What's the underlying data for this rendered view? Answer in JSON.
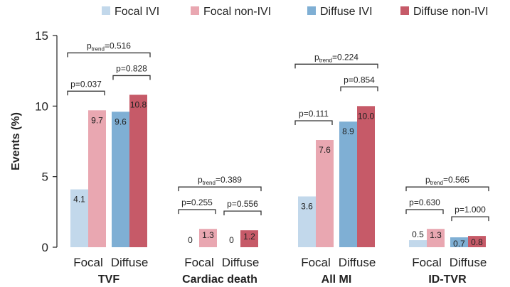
{
  "chart_data": {
    "type": "bar",
    "ylabel": "Events (%)",
    "ylim": [
      0,
      15
    ],
    "yticks": [
      "0",
      "5",
      "10",
      "15"
    ],
    "grid": false,
    "legend_position": "top",
    "series": [
      {
        "name": "Focal IVI",
        "color": "#c2d8eb"
      },
      {
        "name": "Focal non-IVI",
        "color": "#e9a7b1"
      },
      {
        "name": "Diffuse IVI",
        "color": "#7fafd4"
      },
      {
        "name": "Diffuse non-IVI",
        "color": "#c65a68"
      }
    ],
    "groups": [
      {
        "name": "TVF",
        "sub": [
          "Focal",
          "Diffuse"
        ],
        "values": [
          4.1,
          9.7,
          9.6,
          10.8
        ],
        "labels": [
          "4.1",
          "9.7",
          "9.6",
          "10.8"
        ],
        "p_focal": "p=0.037",
        "p_diffuse": "p=0.828",
        "p_trend": "0.516"
      },
      {
        "name": "Cardiac death",
        "sub": [
          "Focal",
          "Diffuse"
        ],
        "values": [
          0,
          1.3,
          0,
          1.2
        ],
        "labels": [
          "0",
          "1.3",
          "0",
          "1.2"
        ],
        "p_focal": "p=0.255",
        "p_diffuse": "p=0.556",
        "p_trend": "0.389"
      },
      {
        "name": "All MI",
        "sub": [
          "Focal",
          "Diffuse"
        ],
        "values": [
          3.6,
          7.6,
          8.9,
          10.0
        ],
        "labels": [
          "3.6",
          "7.6",
          "8.9",
          "10.0"
        ],
        "p_focal": "p=0.111",
        "p_diffuse": "p=0.854",
        "p_trend": "0.224"
      },
      {
        "name": "ID-TVR",
        "sub": [
          "Focal",
          "Diffuse"
        ],
        "values": [
          0.5,
          1.3,
          0.7,
          0.8
        ],
        "labels": [
          "0.5",
          "1.3",
          "0.7",
          "0.8"
        ],
        "p_focal": "p=0.630",
        "p_diffuse": "p=1.000",
        "p_trend": "0.565"
      }
    ]
  }
}
